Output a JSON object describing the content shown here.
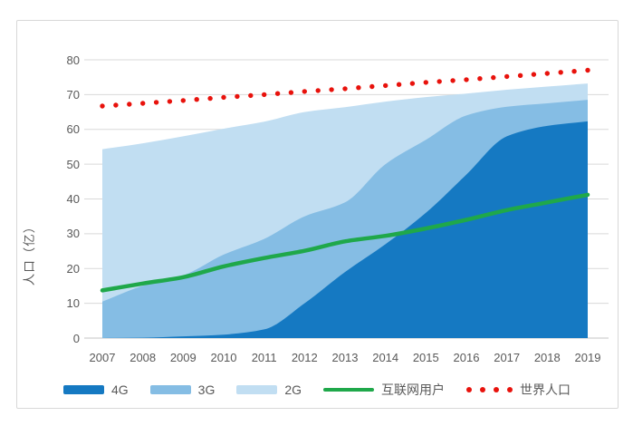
{
  "figure": {
    "y_axis_title": "人口（亿）"
  },
  "chart_data": {
    "type": "area",
    "title": "",
    "x": [
      2007,
      2008,
      2009,
      2010,
      2011,
      2012,
      2013,
      2014,
      2015,
      2016,
      2017,
      2018,
      2019
    ],
    "xlabel": "",
    "ylabel": "人口（亿）",
    "ylim": [
      0,
      80
    ],
    "yticks": [
      0,
      10,
      20,
      30,
      40,
      50,
      60,
      70,
      80
    ],
    "grid": true,
    "legend_position": "bottom",
    "series": [
      {
        "name": "4G",
        "type": "area",
        "color": "#1579c2",
        "values": [
          0,
          0.1,
          0.5,
          1.0,
          2.5,
          10,
          19,
          27,
          36,
          47,
          58,
          61,
          62.3
        ]
      },
      {
        "name": "3G",
        "type": "area",
        "color": "#85bde4",
        "values": [
          10.5,
          15,
          18,
          24,
          28.5,
          35,
          39,
          50,
          57,
          64,
          66.5,
          67.5,
          68.5
        ]
      },
      {
        "name": "2G",
        "type": "area",
        "color": "#c1def2",
        "values": [
          54.3,
          56,
          58,
          60.2,
          62.2,
          65,
          66.4,
          68,
          69.3,
          70.3,
          71.4,
          72.3,
          73.2
        ]
      },
      {
        "name": "互联网用户",
        "type": "line",
        "color": "#1fa84a",
        "values": [
          13.7,
          15.7,
          17.5,
          20.6,
          23.0,
          25.1,
          27.8,
          29.4,
          31.5,
          34.0,
          36.8,
          39.0,
          41.2
        ]
      },
      {
        "name": "世界人口",
        "type": "dotted-line",
        "color": "#e8120c",
        "values": [
          66.7,
          67.5,
          68.3,
          69.2,
          70.0,
          70.9,
          71.7,
          72.6,
          73.5,
          74.3,
          75.2,
          76.1,
          77.0
        ]
      }
    ],
    "colors": {
      "gridline": "#d9d9d9",
      "baseline": "#c4c4c4",
      "axis_text": "#595959",
      "figure_border": "#d8d8d8"
    }
  }
}
